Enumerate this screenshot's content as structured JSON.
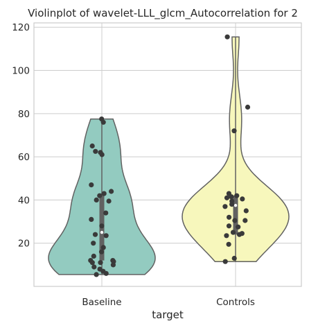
{
  "chart_data": {
    "type": "violin",
    "title": "Violinplot of wavelet-LLL_glcm_Autocorrelation for 2",
    "xlabel": "target",
    "ylabel": "",
    "categories": [
      "Baseline",
      "Controls"
    ],
    "ylim": [
      0,
      122
    ],
    "yticks": [
      20,
      40,
      60,
      80,
      100,
      120
    ],
    "grid": true,
    "series": [
      {
        "category": "Baseline",
        "color": "#93cbc0",
        "range": [
          5.5,
          77.5
        ],
        "quartiles": [
          12,
          43
        ],
        "median": 25,
        "points": [
          77.5,
          76,
          65,
          62.5,
          62,
          61,
          47,
          44,
          43,
          42,
          40,
          39.5,
          34,
          31,
          28,
          24,
          23.5,
          20,
          18,
          16,
          14,
          12,
          12,
          11.5,
          11,
          11,
          10,
          9,
          8,
          7,
          6,
          5.5
        ]
      },
      {
        "category": "Controls",
        "color": "#f7f7bc",
        "range": [
          11.5,
          115.5
        ],
        "quartiles": [
          24,
          42
        ],
        "median": 37.5,
        "points": [
          115.5,
          83,
          72,
          43,
          42,
          41.5,
          41,
          40.5,
          39.5,
          38,
          37,
          35,
          32,
          30.5,
          30.5,
          28,
          27.5,
          25,
          24.5,
          24,
          23.5,
          19.5,
          13,
          11.5
        ]
      }
    ]
  }
}
